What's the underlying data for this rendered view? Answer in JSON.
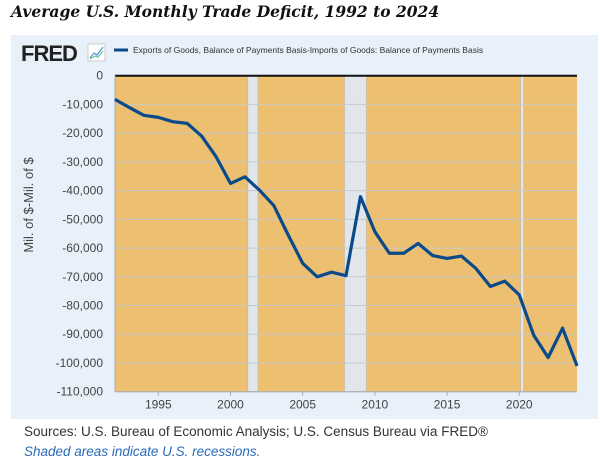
{
  "title": "Average U.S. Monthly Trade Deficit,  1992 to 2024",
  "logo_text": "FRED",
  "footer": {
    "sources": "Sources: U.S. Bureau of Economic Analysis; U.S. Census Bureau via FRED®",
    "note": "Shaded areas indicate U.S. recessions."
  },
  "chart_data": {
    "type": "line",
    "title": "",
    "xlabel": "",
    "ylabel": "Mil. of $-Mil. of $",
    "xlim": [
      1992,
      2024
    ],
    "ylim": [
      -110000,
      0
    ],
    "grid": true,
    "legend_placement": "top",
    "background_color": "#edbf71",
    "recession_color": "#e1e6eb",
    "line_color": "#0a4a8a",
    "x_ticks": [
      "1995",
      "2000",
      "2005",
      "2010",
      "2015",
      "2020"
    ],
    "y_ticks": [
      "0",
      "-10,000",
      "-20,000",
      "-30,000",
      "-40,000",
      "-50,000",
      "-60,000",
      "-70,000",
      "-80,000",
      "-90,000",
      "-100,000",
      "-110,000"
    ],
    "recessions": [
      [
        2001.2,
        2001.9
      ],
      [
        2007.9,
        2009.4
      ],
      [
        2020.1,
        2020.3
      ]
    ],
    "series": [
      {
        "name": "Exports of Goods, Balance of Payments Basis-Imports of Goods: Balance of Payments Basis",
        "x": [
          1992,
          1993,
          1994,
          1995,
          1996,
          1997,
          1998,
          1999,
          2000,
          2001,
          2002,
          2003,
          2004,
          2005,
          2006,
          2007,
          2008,
          2009,
          2010,
          2011,
          2012,
          2013,
          2014,
          2015,
          2016,
          2017,
          2018,
          2019,
          2020,
          2021,
          2022,
          2023,
          2024
        ],
        "y": [
          -8240,
          -11100,
          -13800,
          -14500,
          -16000,
          -16600,
          -21000,
          -28200,
          -37500,
          -35200,
          -39800,
          -45200,
          -55500,
          -65300,
          -70000,
          -68400,
          -69600,
          -42100,
          -54300,
          -61800,
          -61800,
          -58400,
          -62600,
          -63600,
          -62800,
          -67100,
          -73400,
          -71500,
          -76300,
          -90300,
          -98100,
          -87900,
          -101000
        ]
      }
    ]
  }
}
